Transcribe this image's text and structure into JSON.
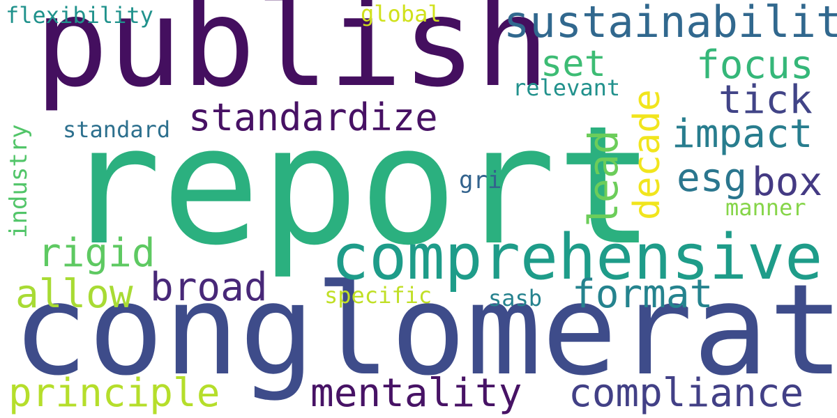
{
  "words": {
    "report": {
      "text": "report",
      "color": "#2bb07f"
    },
    "conglomerate": {
      "text": "conglomerate",
      "color": "#3e4c8a"
    },
    "publish": {
      "text": "publish",
      "color": "#440f5f"
    },
    "comprehensive": {
      "text": "comprehensive",
      "color": "#1e9c89"
    },
    "sustainability": {
      "text": "sustainability",
      "color": "#31688e"
    },
    "standardize": {
      "text": "standardize",
      "color": "#471164"
    },
    "compliance": {
      "text": "compliance",
      "color": "#424086"
    },
    "mentality": {
      "text": "mentality",
      "color": "#471365"
    },
    "principle": {
      "text": "principle",
      "color": "#b5de2b"
    },
    "format": {
      "text": "format",
      "color": "#25838e"
    },
    "broad": {
      "text": "broad",
      "color": "#482878"
    },
    "allow": {
      "text": "allow",
      "color": "#a8db34"
    },
    "rigid": {
      "text": "rigid",
      "color": "#5ec962"
    },
    "impact": {
      "text": "impact",
      "color": "#287d8e"
    },
    "focus": {
      "text": "focus",
      "color": "#35b779"
    },
    "tick": {
      "text": "tick",
      "color": "#414487"
    },
    "box": {
      "text": "box",
      "color": "#443a83"
    },
    "esg": {
      "text": "esg",
      "color": "#2a768e"
    },
    "set": {
      "text": "set",
      "color": "#3dbc74"
    },
    "decade": {
      "text": "decade",
      "color": "#f1e51d"
    },
    "lead": {
      "text": "lead",
      "color": "#6ccd5a"
    },
    "industry": {
      "text": "industry",
      "color": "#52c569"
    },
    "standard": {
      "text": "standard",
      "color": "#2d708e"
    },
    "relevant": {
      "text": "relevant",
      "color": "#21918c"
    },
    "global": {
      "text": "global",
      "color": "#d0e11c"
    },
    "flexibility": {
      "text": "flexibility",
      "color": "#20928c"
    },
    "specific": {
      "text": "specific",
      "color": "#c0df25"
    },
    "sasb": {
      "text": "sasb",
      "color": "#26828e"
    },
    "manner": {
      "text": "manner",
      "color": "#86d549"
    },
    "gri": {
      "text": "gri",
      "color": "#33638d"
    }
  }
}
